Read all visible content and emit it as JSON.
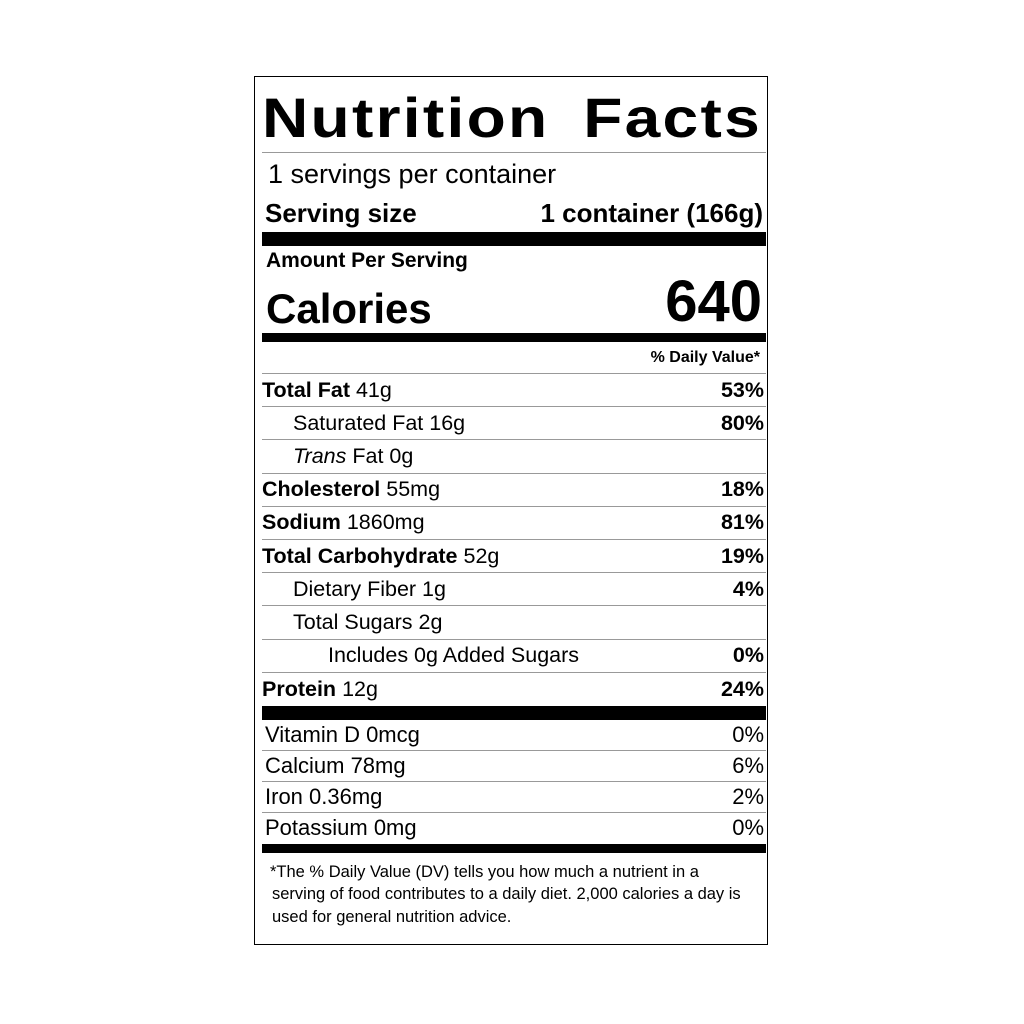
{
  "title": "Nutrition Facts",
  "servings": "1 servings per container",
  "serving_size": {
    "label": "Serving size",
    "value": "1 container (166g)"
  },
  "amount_per_serving": "Amount Per Serving",
  "calories": {
    "label": "Calories",
    "value": 640
  },
  "daily_value_header": "% Daily Value*",
  "nutrients": [
    {
      "name": "Total Fat",
      "amount": "41g",
      "dv": "53%",
      "sub": [
        {
          "name": "Saturated Fat",
          "amount": "16g",
          "dv": "80%"
        },
        {
          "name_italic": "Trans",
          "name": "Fat",
          "amount": "0g"
        }
      ]
    },
    {
      "name": "Cholesterol",
      "amount": "55mg",
      "dv": "18%"
    },
    {
      "name": "Sodium",
      "amount": "1860mg",
      "dv": "81%"
    },
    {
      "name": "Total Carbohydrate",
      "amount": "52g",
      "dv": "19%",
      "sub": [
        {
          "name": "Dietary Fiber",
          "amount": "1g",
          "dv": "4%"
        },
        {
          "name": "Total Sugars",
          "amount": "2g",
          "sub": [
            {
              "name": "Includes 0g Added Sugars",
              "dv": "0%"
            }
          ]
        }
      ]
    },
    {
      "name": "Protein",
      "amount": "12g",
      "dv": "24%"
    }
  ],
  "vitamins": [
    {
      "text": "Vitamin D 0mcg",
      "dv": "0%"
    },
    {
      "text": "Calcium 78mg",
      "dv": "6%"
    },
    {
      "text": "Iron 0.36mg",
      "dv": "2%"
    },
    {
      "text": "Potassium 0mg",
      "dv": "0%"
    }
  ],
  "footnote": "*The % Daily Value (DV) tells you how much a nutrient in a serving of food contributes to a daily diet. 2,000 calories a day is used for general nutrition advice."
}
